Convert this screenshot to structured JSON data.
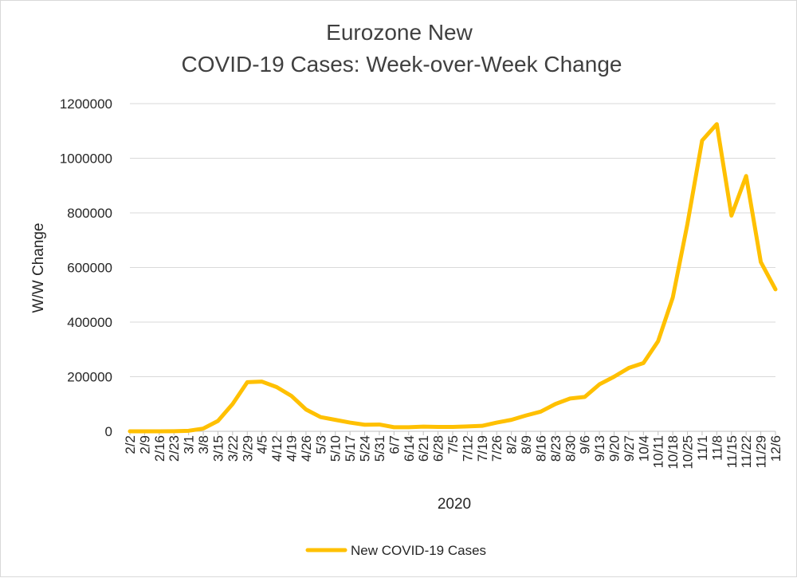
{
  "chart_data": {
    "type": "line",
    "title_lines": [
      "Eurozone New",
      "COVID-19 Cases: Week-over-Week Change"
    ],
    "xlabel": "2020",
    "ylabel": "W/W Change",
    "ylim": [
      0,
      1200000
    ],
    "yticks": [
      "0",
      "200000",
      "400000",
      "600000",
      "800000",
      "1000000",
      "1200000"
    ],
    "grid": "horizontal",
    "legend_position": "bottom",
    "line_color": "#FFC000",
    "categories": [
      "2/2",
      "2/9",
      "2/16",
      "2/23",
      "3/1",
      "3/8",
      "3/15",
      "3/22",
      "3/29",
      "4/5",
      "4/12",
      "4/19",
      "4/26",
      "5/3",
      "5/10",
      "5/17",
      "5/24",
      "5/31",
      "6/7",
      "6/14",
      "6/21",
      "6/28",
      "7/5",
      "7/12",
      "7/19",
      "7/26",
      "8/2",
      "8/9",
      "8/16",
      "8/23",
      "8/30",
      "9/6",
      "9/13",
      "9/20",
      "9/27",
      "10/4",
      "10/11",
      "10/18",
      "10/25",
      "11/1",
      "11/8",
      "11/15",
      "11/22",
      "11/29",
      "12/6"
    ],
    "series": [
      {
        "name": "New COVID-19 Cases",
        "values": [
          0,
          0,
          0,
          500,
          2000,
          10000,
          38000,
          100000,
          180000,
          182000,
          162000,
          130000,
          80000,
          52000,
          42000,
          32000,
          24000,
          25000,
          15000,
          15000,
          17000,
          16000,
          16000,
          18000,
          20000,
          32000,
          42000,
          58000,
          72000,
          100000,
          120000,
          126000,
          172000,
          200000,
          232000,
          250000,
          330000,
          490000,
          760000,
          1065000,
          1125000,
          790000,
          935000,
          620000,
          520000
        ]
      }
    ]
  }
}
